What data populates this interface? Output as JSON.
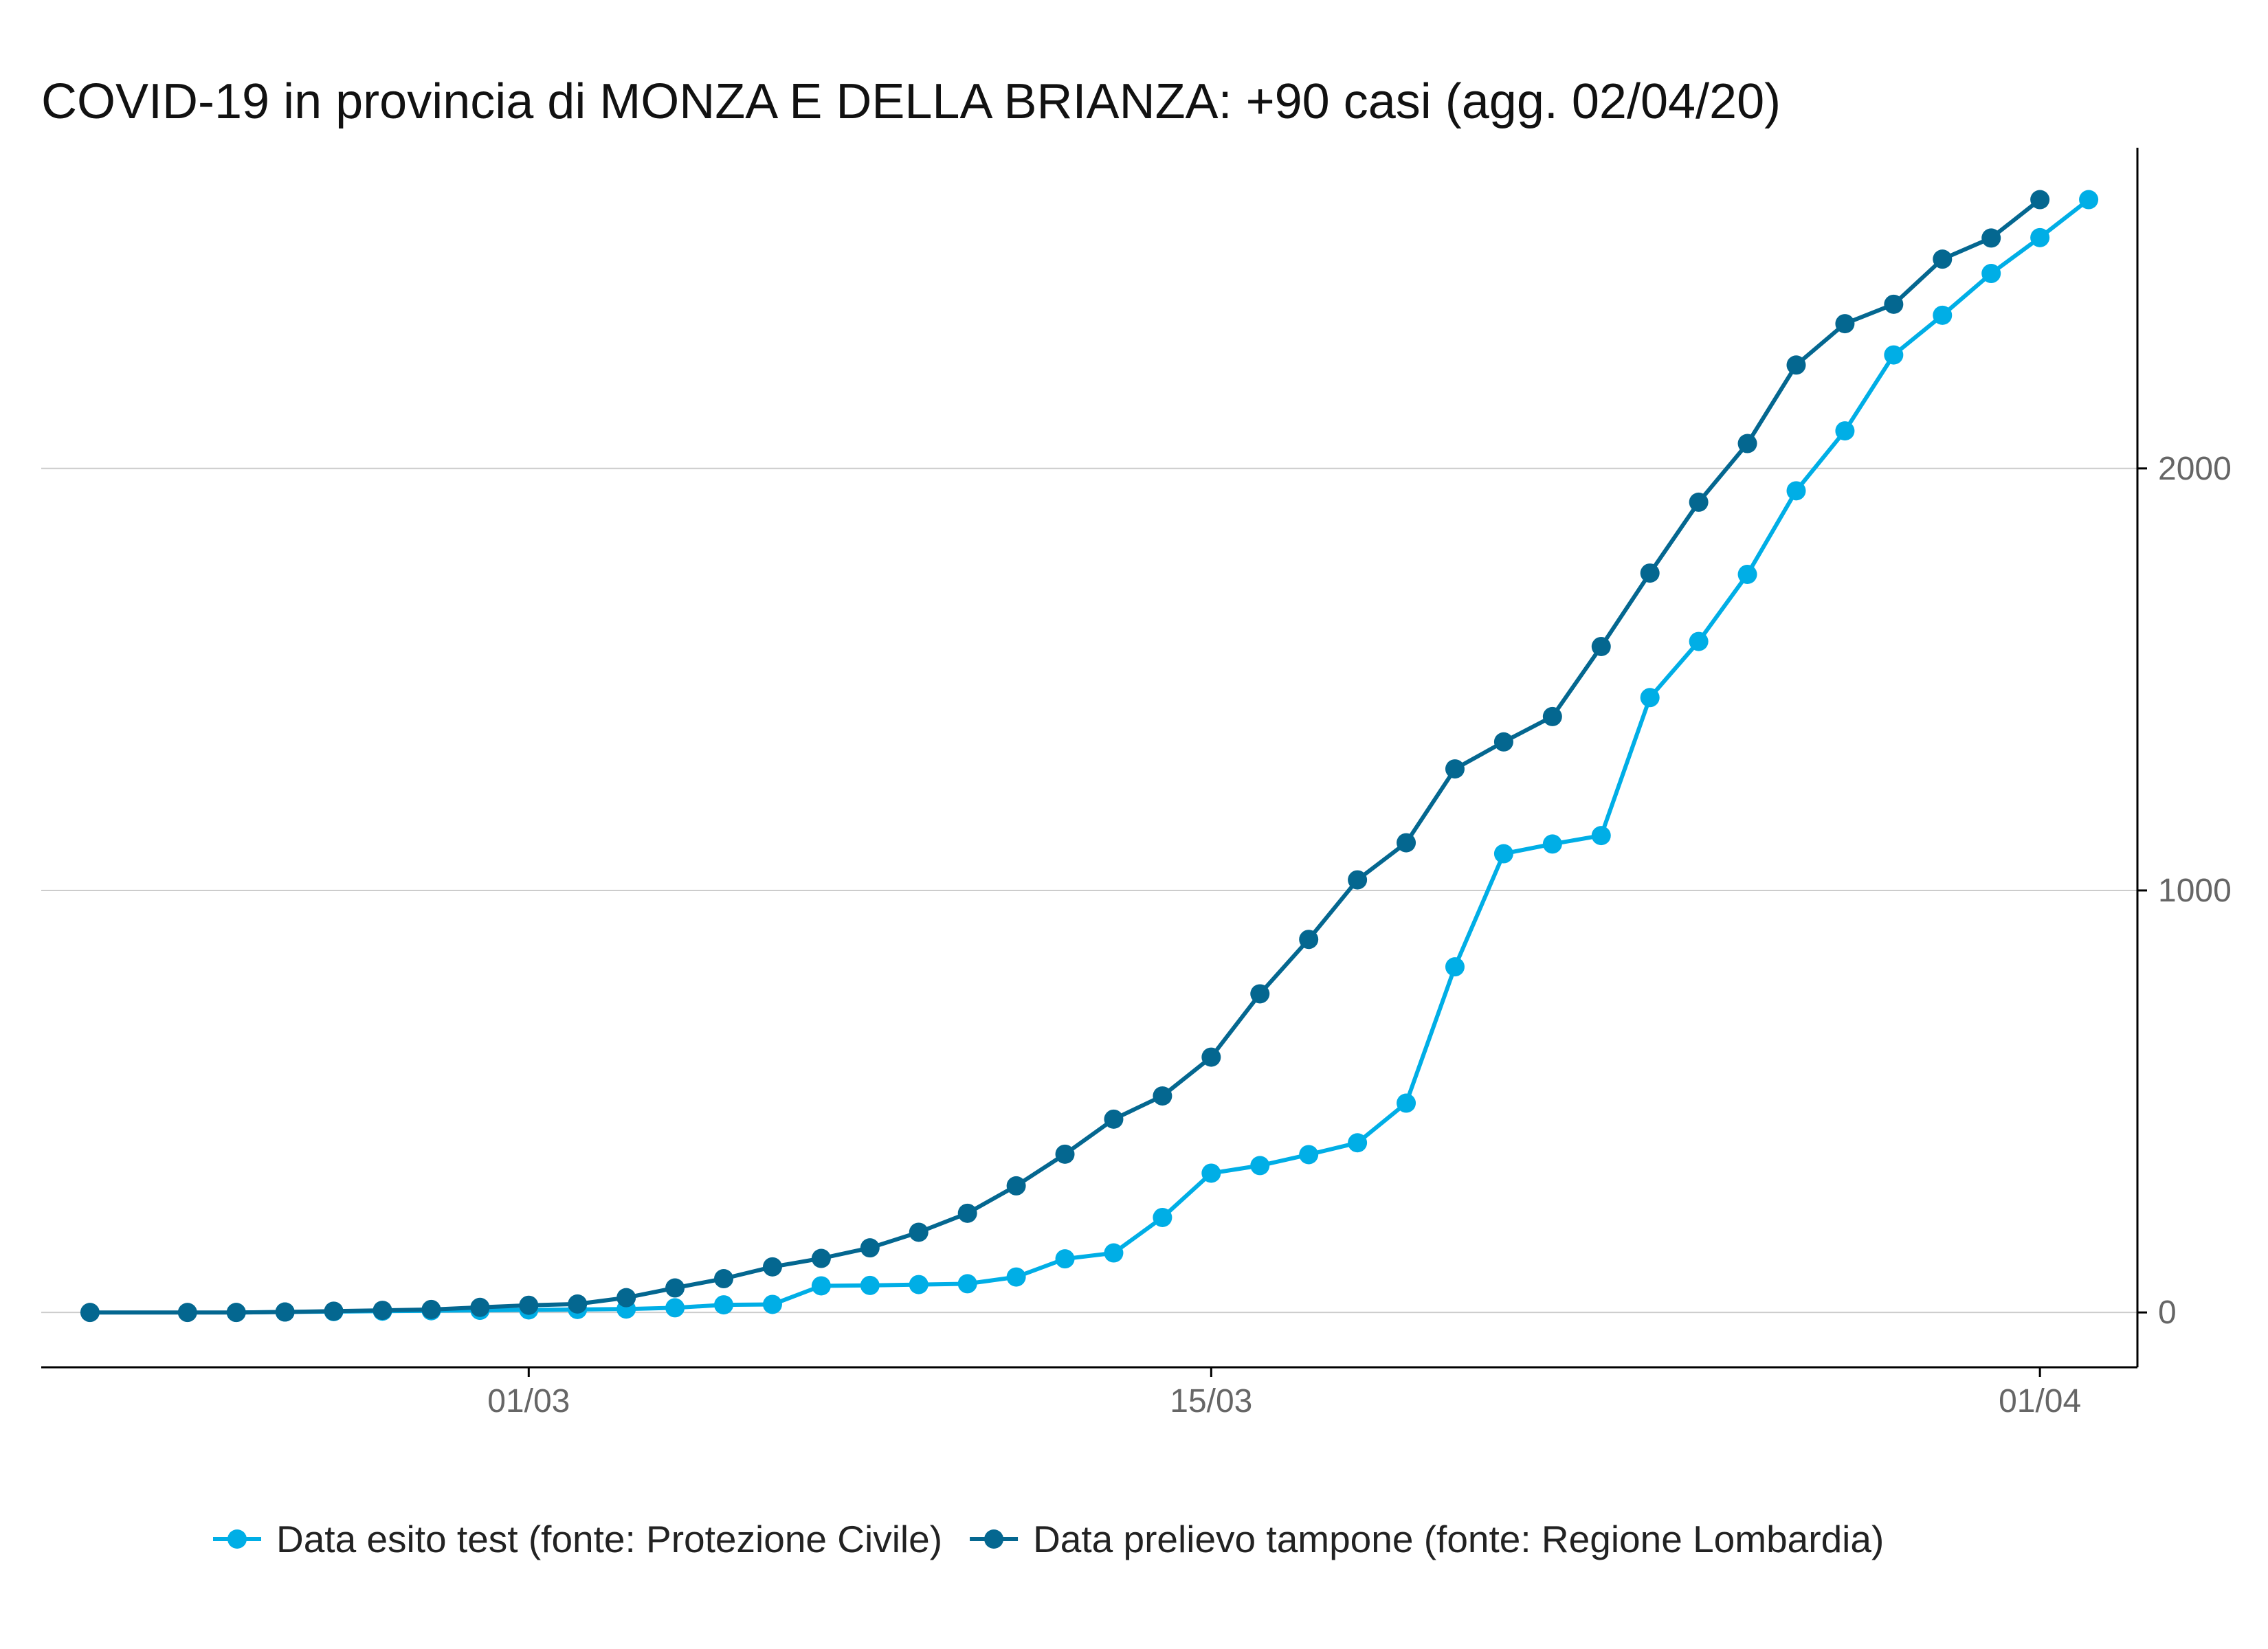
{
  "chart_data": {
    "type": "line",
    "title": "COVID-19 in provincia di MONZA E DELLA BRIANZA: +90 casi (agg. 02/04/20)",
    "xlabel": "",
    "ylabel": "",
    "x_ticks": [
      {
        "date": "2020-03-01",
        "label": "01/03"
      },
      {
        "date": "2020-03-15",
        "label": "15/03"
      },
      {
        "date": "2020-04-01",
        "label": "01/04"
      }
    ],
    "y_ticks": [
      0,
      1000,
      2000
    ],
    "xlim": [
      "2020-02-20",
      "2020-04-03"
    ],
    "ylim": [
      -130,
      2760
    ],
    "y_axis_position": "right",
    "grid": "horizontal",
    "legend_position": "bottom",
    "series": [
      {
        "name": "Data esito test (fonte: Protezione Civile)",
        "color": "#00aee6",
        "x": [
          "2020-02-24",
          "2020-02-25",
          "2020-02-26",
          "2020-02-27",
          "2020-02-28",
          "2020-02-29",
          "2020-03-01",
          "2020-03-02",
          "2020-03-03",
          "2020-03-04",
          "2020-03-05",
          "2020-03-06",
          "2020-03-07",
          "2020-03-08",
          "2020-03-09",
          "2020-03-10",
          "2020-03-11",
          "2020-03-12",
          "2020-03-13",
          "2020-03-14",
          "2020-03-15",
          "2020-03-16",
          "2020-03-17",
          "2020-03-18",
          "2020-03-19",
          "2020-03-20",
          "2020-03-21",
          "2020-03-22",
          "2020-03-23",
          "2020-03-24",
          "2020-03-25",
          "2020-03-26",
          "2020-03-27",
          "2020-03-28",
          "2020-03-29",
          "2020-03-30",
          "2020-03-31",
          "2020-04-01",
          "2020-04-02"
        ],
        "y": [
          0,
          1,
          2,
          3,
          4,
          5,
          6,
          7,
          8,
          11,
          18,
          19,
          63,
          64,
          66,
          68,
          84,
          127,
          141,
          225,
          330,
          348,
          374,
          402,
          496,
          819,
          1087,
          1110,
          1130,
          1457,
          1590,
          1749,
          1947,
          2089,
          2269,
          2363,
          2462,
          2547,
          2637
        ]
      },
      {
        "name": "Data prelievo tampone (fonte: Regione Lombardia)",
        "color": "#046790",
        "x": [
          "2020-02-21",
          "2020-02-23",
          "2020-02-24",
          "2020-02-25",
          "2020-02-26",
          "2020-02-27",
          "2020-02-28",
          "2020-02-29",
          "2020-03-01",
          "2020-03-02",
          "2020-03-03",
          "2020-03-04",
          "2020-03-05",
          "2020-03-06",
          "2020-03-07",
          "2020-03-08",
          "2020-03-09",
          "2020-03-10",
          "2020-03-11",
          "2020-03-12",
          "2020-03-13",
          "2020-03-14",
          "2020-03-15",
          "2020-03-16",
          "2020-03-17",
          "2020-03-18",
          "2020-03-19",
          "2020-03-20",
          "2020-03-21",
          "2020-03-22",
          "2020-03-23",
          "2020-03-24",
          "2020-03-25",
          "2020-03-26",
          "2020-03-27",
          "2020-03-28",
          "2020-03-29",
          "2020-03-30",
          "2020-03-31",
          "2020-04-01"
        ],
        "y": [
          0,
          0,
          0,
          1,
          3,
          5,
          7,
          12,
          17,
          20,
          35,
          58,
          80,
          108,
          128,
          153,
          190,
          235,
          300,
          375,
          458,
          513,
          605,
          755,
          884,
          1025,
          1113,
          1288,
          1352,
          1412,
          1578,
          1752,
          1920,
          2059,
          2245,
          2343,
          2389,
          2496,
          2546,
          2637
        ]
      }
    ]
  }
}
